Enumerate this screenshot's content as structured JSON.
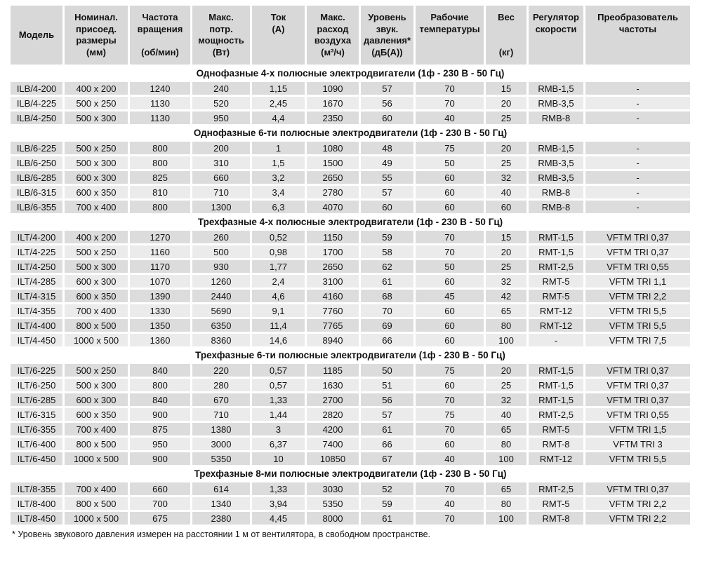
{
  "columns": [
    {
      "name": "model",
      "mode": "center",
      "lines": [
        "Модель"
      ]
    },
    {
      "name": "dimensions",
      "mode": "center",
      "lines": [
        "Номинал.",
        "присоед.",
        "размеры",
        "(мм)"
      ]
    },
    {
      "name": "rotation-speed",
      "mode": "split",
      "lines": [
        "Частота",
        "вращения"
      ],
      "unit": "(об/мин)"
    },
    {
      "name": "max-power",
      "mode": "center",
      "lines": [
        "Макс.",
        "потр.",
        "мощность",
        "(Вт)"
      ]
    },
    {
      "name": "current",
      "mode": "top",
      "lines": [
        "Ток",
        "(А)"
      ]
    },
    {
      "name": "max-airflow",
      "mode": "center",
      "lines": [
        "Макс.",
        "расход",
        "воздуха",
        "(м³/ч)"
      ]
    },
    {
      "name": "sound-level",
      "mode": "center",
      "lines": [
        "Уровень",
        "звук.",
        "давления*",
        "(дБ(А))"
      ]
    },
    {
      "name": "operating-temps",
      "mode": "top",
      "lines": [
        "Рабочие",
        "температуры"
      ]
    },
    {
      "name": "weight",
      "mode": "split",
      "lines": [
        "Вес"
      ],
      "unit": "(кг)"
    },
    {
      "name": "speed-regulator",
      "mode": "top",
      "lines": [
        "Регулятор",
        "скорости"
      ]
    },
    {
      "name": "frequency-converter",
      "mode": "top",
      "lines": [
        "Преобразователь",
        "частоты"
      ]
    }
  ],
  "sections": [
    {
      "title": "Однофазные 4-х полюсные электродвигатели (1ф - 230 В - 50 Гц)",
      "rows": [
        [
          "ILB/4-200",
          "400 x 200",
          "1240",
          "240",
          "1,15",
          "1090",
          "57",
          "70",
          "15",
          "RMB-1,5",
          "-"
        ],
        [
          "ILB/4-225",
          "500 x 250",
          "1130",
          "520",
          "2,45",
          "1670",
          "56",
          "70",
          "20",
          "RMB-3,5",
          "-"
        ],
        [
          "ILB/4-250",
          "500 x 300",
          "1130",
          "950",
          "4,4",
          "2350",
          "60",
          "40",
          "25",
          "RMB-8",
          "-"
        ]
      ]
    },
    {
      "title": "Однофазные 6-ти полюсные электродвигатели (1ф - 230 В - 50 Гц)",
      "rows": [
        [
          "ILB/6-225",
          "500 x 250",
          "800",
          "200",
          "1",
          "1080",
          "48",
          "75",
          "20",
          "RMB-1,5",
          "-"
        ],
        [
          "ILB/6-250",
          "500 x 300",
          "800",
          "310",
          "1,5",
          "1500",
          "49",
          "50",
          "25",
          "RMB-3,5",
          "-"
        ],
        [
          "ILB/6-285",
          "600 x 300",
          "825",
          "660",
          "3,2",
          "2650",
          "55",
          "60",
          "32",
          "RMB-3,5",
          "-"
        ],
        [
          "ILB/6-315",
          "600 x 350",
          "810",
          "710",
          "3,4",
          "2780",
          "57",
          "60",
          "40",
          "RMB-8",
          "-"
        ],
        [
          "ILB/6-355",
          "700 x 400",
          "800",
          "1300",
          "6,3",
          "4070",
          "60",
          "60",
          "60",
          "RMB-8",
          "-"
        ]
      ]
    },
    {
      "title": "Трехфазные 4-х полюсные электродвигатели (1ф - 230 В - 50 Гц)",
      "rows": [
        [
          "ILT/4-200",
          "400 x 200",
          "1270",
          "260",
          "0,52",
          "1150",
          "59",
          "70",
          "15",
          "RMT-1,5",
          "VFTM TRI 0,37"
        ],
        [
          "ILT/4-225",
          "500 x 250",
          "1160",
          "500",
          "0,98",
          "1700",
          "58",
          "70",
          "20",
          "RMT-1,5",
          "VFTM TRI 0,37"
        ],
        [
          "ILT/4-250",
          "500 x 300",
          "1170",
          "930",
          "1,77",
          "2650",
          "62",
          "50",
          "25",
          "RMT-2,5",
          "VFTM TRI 0,55"
        ],
        [
          "ILT/4-285",
          "600 x 300",
          "1070",
          "1260",
          "2,4",
          "3100",
          "61",
          "60",
          "32",
          "RMT-5",
          "VFTM TRI 1,1"
        ],
        [
          "ILT/4-315",
          "600 x 350",
          "1390",
          "2440",
          "4,6",
          "4160",
          "68",
          "45",
          "42",
          "RMT-5",
          "VFTM TRI 2,2"
        ],
        [
          "ILT/4-355",
          "700 x 400",
          "1330",
          "5690",
          "9,1",
          "7760",
          "70",
          "60",
          "65",
          "RMT-12",
          "VFTM TRI 5,5"
        ],
        [
          "ILT/4-400",
          "800 x 500",
          "1350",
          "6350",
          "11,4",
          "7765",
          "69",
          "60",
          "80",
          "RMT-12",
          "VFTM TRI 5,5"
        ],
        [
          "ILT/4-450",
          "1000 x 500",
          "1360",
          "8360",
          "14,6",
          "8940",
          "66",
          "60",
          "100",
          "-",
          "VFTM TRI 7,5"
        ]
      ]
    },
    {
      "title": "Трехфазные 6-ти полюсные электродвигатели (1ф - 230 В - 50 Гц)",
      "rows": [
        [
          "ILT/6-225",
          "500 x 250",
          "840",
          "220",
          "0,57",
          "1185",
          "50",
          "75",
          "20",
          "RMT-1,5",
          "VFTM TRI 0,37"
        ],
        [
          "ILT/6-250",
          "500 x 300",
          "800",
          "280",
          "0,57",
          "1630",
          "51",
          "60",
          "25",
          "RMT-1,5",
          "VFTM TRI 0,37"
        ],
        [
          "ILT/6-285",
          "600 x 300",
          "840",
          "670",
          "1,33",
          "2700",
          "56",
          "70",
          "32",
          "RMT-1,5",
          "VFTM TRI 0,37"
        ],
        [
          "ILT/6-315",
          "600 x 350",
          "900",
          "710",
          "1,44",
          "2820",
          "57",
          "75",
          "40",
          "RMT-2,5",
          "VFTM TRI 0,55"
        ],
        [
          "ILT/6-355",
          "700 x 400",
          "875",
          "1380",
          "3",
          "4200",
          "61",
          "70",
          "65",
          "RMT-5",
          "VFTM TRI 1,5"
        ],
        [
          "ILT/6-400",
          "800 x 500",
          "950",
          "3000",
          "6,37",
          "7400",
          "66",
          "60",
          "80",
          "RMT-8",
          "VFTM TRI 3"
        ],
        [
          "ILT/6-450",
          "1000 x 500",
          "900",
          "5350",
          "10",
          "10850",
          "67",
          "40",
          "100",
          "RMT-12",
          "VFTM TRI 5,5"
        ]
      ]
    },
    {
      "title": "Трехфазные 8-ми полюсные электродвигатели (1ф - 230 В - 50 Гц)",
      "rows": [
        [
          "ILT/8-355",
          "700 x 400",
          "660",
          "614",
          "1,33",
          "3030",
          "52",
          "70",
          "65",
          "RMT-2,5",
          "VFTM TRI 0,37"
        ],
        [
          "ILT/8-400",
          "800 x 500",
          "700",
          "1340",
          "3,94",
          "5350",
          "59",
          "40",
          "80",
          "RMT-5",
          "VFTM TRI 2,2"
        ],
        [
          "ILT/8-450",
          "1000 x 500",
          "675",
          "2380",
          "4,45",
          "8000",
          "61",
          "70",
          "100",
          "RMT-8",
          "VFTM TRI 2,2"
        ]
      ]
    }
  ],
  "footnote": "* Уровень звукового давления измерен на расстоянии 1 м от вентилятора, в свободном пространстве."
}
